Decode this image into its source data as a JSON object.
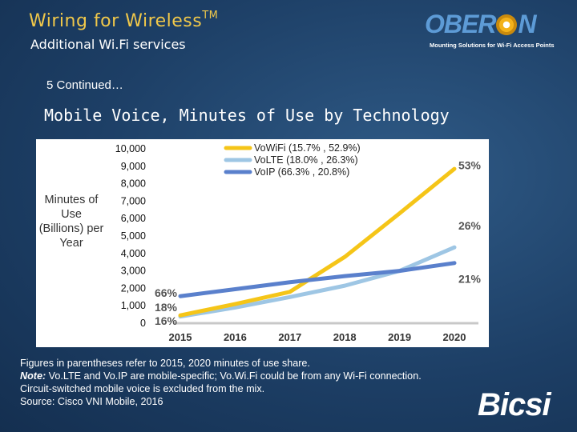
{
  "header": {
    "title": "Wiring for Wireless",
    "trademark": "TM",
    "subtitle": "Additional Wi.Fi services"
  },
  "logo_oberon": {
    "word_left": "OBER",
    "word_right": "N",
    "tagline": "Mounting Solutions for Wi-Fi Access Points"
  },
  "section_label": "5 Continued…",
  "chart_title": "Mobile Voice, Minutes of Use by Technology",
  "chart_data": {
    "type": "line",
    "ylabel": "Minutes of Use (Billions) per Year",
    "ylabel_lines": [
      "Minutes of",
      "Use",
      "(Billions) per",
      "Year"
    ],
    "x": [
      "2015",
      "2016",
      "2017",
      "2018",
      "2019",
      "2020"
    ],
    "ylim": [
      0,
      10000
    ],
    "yticks": [
      "10,000",
      "9,000",
      "8,000",
      "7,000",
      "6,000",
      "5,000",
      "4,000",
      "3,000",
      "2,000",
      "1,000",
      "0"
    ],
    "ytick_values": [
      10000,
      9000,
      8000,
      7000,
      6000,
      5000,
      4000,
      3000,
      2000,
      1000,
      0
    ],
    "grid": false,
    "legend_position": "top",
    "series": [
      {
        "name": "VoWiFi (15.7% , 52.9%)",
        "color": "#f5c518",
        "values": [
          450,
          1100,
          1800,
          3800,
          6300,
          8850
        ]
      },
      {
        "name": "VoLTE (18.0% , 26.3%)",
        "color": "#9ec6e4",
        "values": [
          380,
          900,
          1500,
          2150,
          3000,
          4350
        ]
      },
      {
        "name": "VoIP (66.3% , 20.8%)",
        "color": "#5a80cc",
        "values": [
          1550,
          1950,
          2350,
          2700,
          3000,
          3450
        ]
      }
    ],
    "start_labels": [
      "66%",
      "18%",
      "16%"
    ],
    "end_labels": [
      "53%",
      "26%",
      "21%"
    ]
  },
  "notes": {
    "line1": "Figures in parentheses refer to 2015, 2020 minutes of use share.",
    "note_label": "Note:",
    "line2_rest": " Vo.LTE and Vo.IP are mobile-specific; Vo.Wi.Fi could be from any Wi-Fi connection.",
    "line3": "Circuit-switched mobile voice is excluded from the mix.",
    "line4": "Source: Cisco VNI Mobile, 2016"
  },
  "logo_bicsi": {
    "text": "Bicsi"
  }
}
